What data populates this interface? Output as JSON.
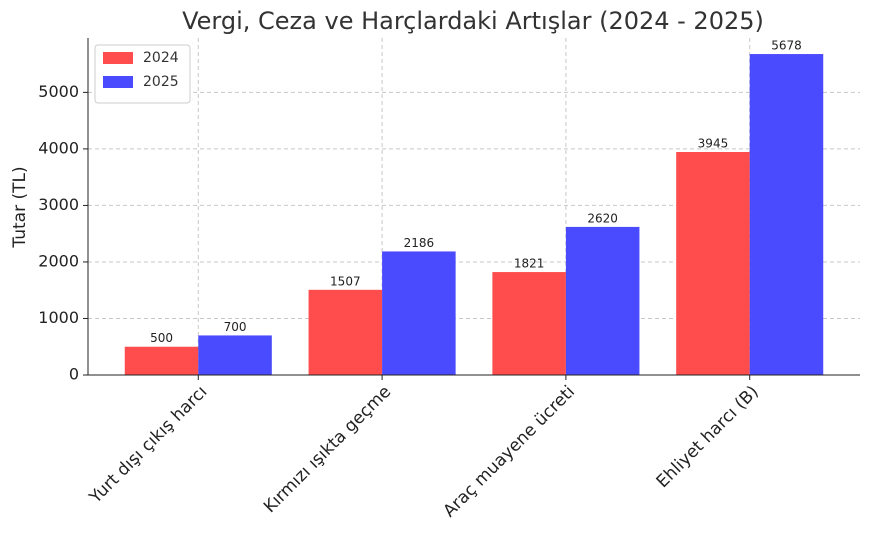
{
  "chart_data": {
    "type": "bar",
    "title": "Vergi, Ceza ve Harçlardaki Artışlar (2024 - 2025)",
    "y_label": "Tutar (TL)",
    "categories": [
      "Yurt dışı çıkış harcı",
      "Kırmızı ışıkta geçme",
      "Araç muayene ücreti",
      "Ehliyet harcı (B)"
    ],
    "series": [
      {
        "name": "2024",
        "color": "#ff4c4c",
        "values": [
          500,
          1507,
          1821,
          3945
        ]
      },
      {
        "name": "2025",
        "color": "#4a4aff",
        "values": [
          700,
          2186,
          2620,
          5678
        ]
      }
    ],
    "ylim": [
      0,
      5962
    ],
    "yticks": [
      0,
      1000,
      2000,
      3000,
      4000,
      5000
    ],
    "grid": true,
    "legend": "upper-left"
  }
}
